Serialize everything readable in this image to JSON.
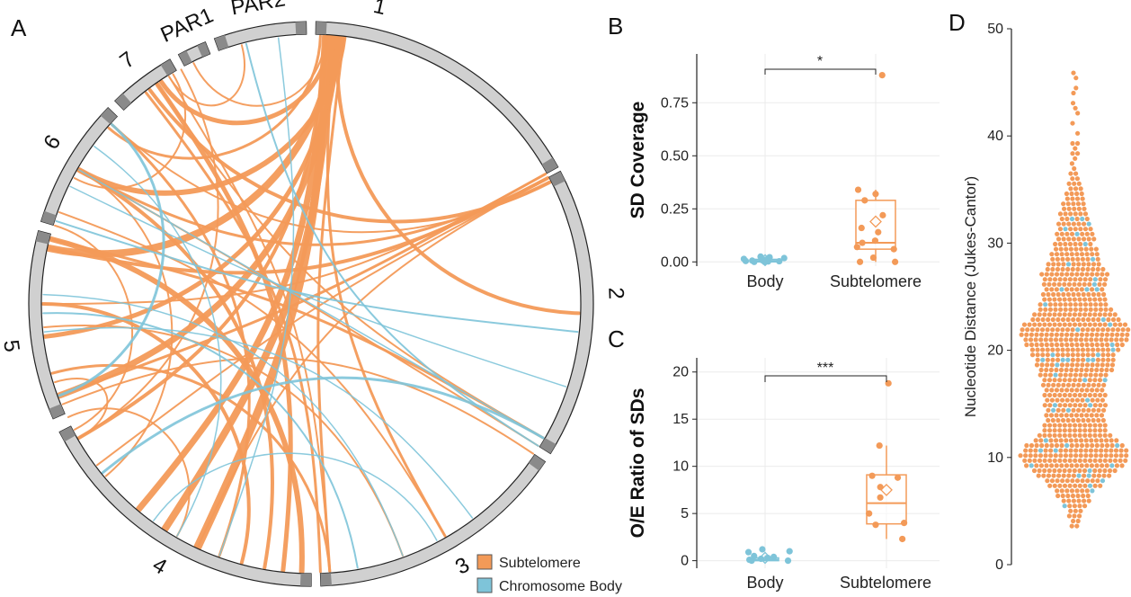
{
  "colors": {
    "subtelomere": "#F39A58",
    "body": "#7EC4D9",
    "ring_fill": "#D0D0D0",
    "ring_dark": "#8A8A8A",
    "grid": "#EBEBEB",
    "axis": "#222222"
  },
  "panel_a": {
    "letter": "A",
    "chromosomes": [
      "1",
      "2",
      "3",
      "4",
      "5",
      "6",
      "7",
      "PAR1",
      "PAR2"
    ]
  },
  "legend": {
    "items": [
      {
        "label": "Subtelomere",
        "color": "#F39A58"
      },
      {
        "label": "Chromosome Body",
        "color": "#7EC4D9"
      }
    ]
  },
  "chart_data": [
    {
      "panel": "B",
      "type": "scatter",
      "subtype": "boxplot-with-points",
      "ylabel": "SD Coverage",
      "categories": [
        "Body",
        "Subtelomere"
      ],
      "yticks": [
        0.0,
        0.25,
        0.5,
        0.75
      ],
      "ytick_labels": [
        "0.00",
        "0.25",
        "0.50",
        "0.75"
      ],
      "ylim": [
        -0.02,
        0.98
      ],
      "significance": "*",
      "points": {
        "Body": [
          0.0,
          0.002,
          0.004,
          0.006,
          0.008,
          0.01,
          0.014,
          0.018,
          0.022,
          0.025,
          0.0,
          0.003
        ],
        "Subtelomere": [
          0.88,
          0.34,
          0.32,
          0.29,
          0.22,
          0.16,
          0.14,
          0.1,
          0.09,
          0.07,
          0.06,
          0.0,
          0.0,
          0.02
        ]
      },
      "box": {
        "Body": {
          "q1": 0.0,
          "median": 0.005,
          "q3": 0.012,
          "min": 0.0,
          "max": 0.025,
          "mean": 0.008
        },
        "Subtelomere": {
          "q1": 0.06,
          "median": 0.09,
          "q3": 0.29,
          "min": 0.0,
          "max": 0.34,
          "mean": 0.19
        }
      }
    },
    {
      "panel": "C",
      "type": "scatter",
      "subtype": "boxplot-with-points",
      "ylabel": "O/E Ratio of SDs",
      "categories": [
        "Body",
        "Subtelomere"
      ],
      "yticks": [
        0,
        5,
        10,
        15,
        20
      ],
      "ytick_labels": [
        "0",
        "5",
        "10",
        "15",
        "20"
      ],
      "ylim": [
        -0.8,
        21.5
      ],
      "significance": "***",
      "points": {
        "Body": [
          0.0,
          0.1,
          0.2,
          0.3,
          0.4,
          0.5,
          0.9,
          1.0,
          1.2,
          0.0
        ],
        "Subtelomere": [
          18.8,
          12.2,
          9.0,
          8.8,
          7.8,
          6.7,
          5.0,
          4.0,
          3.8,
          2.3
        ]
      },
      "box": {
        "Body": {
          "q1": 0.0,
          "median": 0.1,
          "q3": 0.3,
          "min": 0.0,
          "max": 0.5,
          "mean": 0.3
        },
        "Subtelomere": {
          "q1": 3.9,
          "median": 6.1,
          "q3": 9.1,
          "min": 2.3,
          "max": 12.2,
          "mean": 7.5
        }
      }
    },
    {
      "panel": "D",
      "type": "scatter",
      "subtype": "beeswarm",
      "ylabel": "Nucleotide Distance (Jukes-Cantor)",
      "yticks": [
        0,
        10,
        20,
        30,
        40,
        50
      ],
      "ytick_labels": [
        "0",
        "10",
        "20",
        "30",
        "40",
        "50"
      ],
      "ylim": [
        0,
        50
      ],
      "series": [
        {
          "group": "Subtelomere",
          "color": "#F39A58",
          "y_min": 3.8,
          "y_max": 46.0,
          "mode": 9.8
        },
        {
          "group": "Chromosome Body",
          "color": "#7EC4D9",
          "y_min": 3.2,
          "y_max": 32.0
        }
      ]
    }
  ]
}
